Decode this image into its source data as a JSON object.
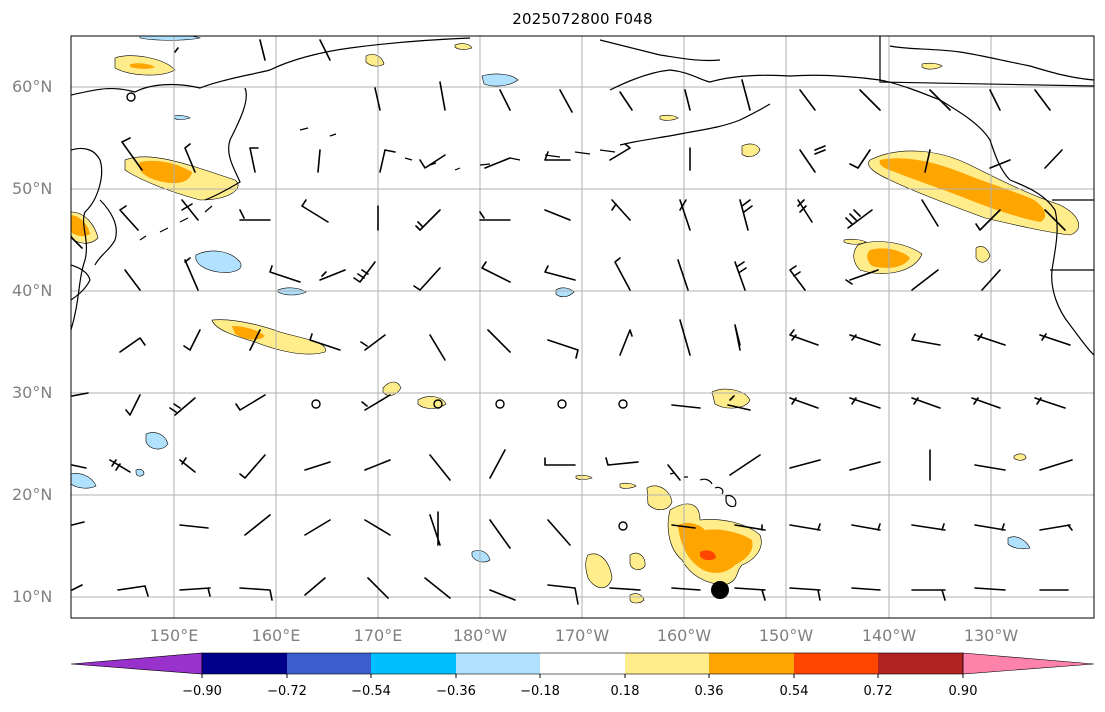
{
  "title": "2025072800 F048",
  "latitude_labels": [
    "60°N",
    "50°N",
    "40°N",
    "30°N",
    "20°N",
    "10°N"
  ],
  "longitude_labels": [
    "150°E",
    "160°E",
    "170°E",
    "180°W",
    "170°W",
    "160°W",
    "150°W",
    "140°W",
    "130°W"
  ],
  "colorbar": {
    "tick_labels": [
      "−0.90",
      "−0.72",
      "−0.54",
      "−0.36",
      "−0.18",
      "0.18",
      "0.36",
      "0.54",
      "0.72",
      "0.90"
    ],
    "colors": [
      "#9932cc",
      "#00008b",
      "#3a5fcd",
      "#00bfff",
      "#b0e2ff",
      "#ffffff",
      "#ffec8b",
      "#ffa500",
      "#ff4500",
      "#b22222",
      "#ff82ab"
    ]
  },
  "map": {
    "projection": "plate-carree",
    "lon_range": [
      140,
      250
    ],
    "lat_range": [
      8,
      65
    ],
    "gridlines": true,
    "marker": "black-dot-near-11N-157W"
  }
}
